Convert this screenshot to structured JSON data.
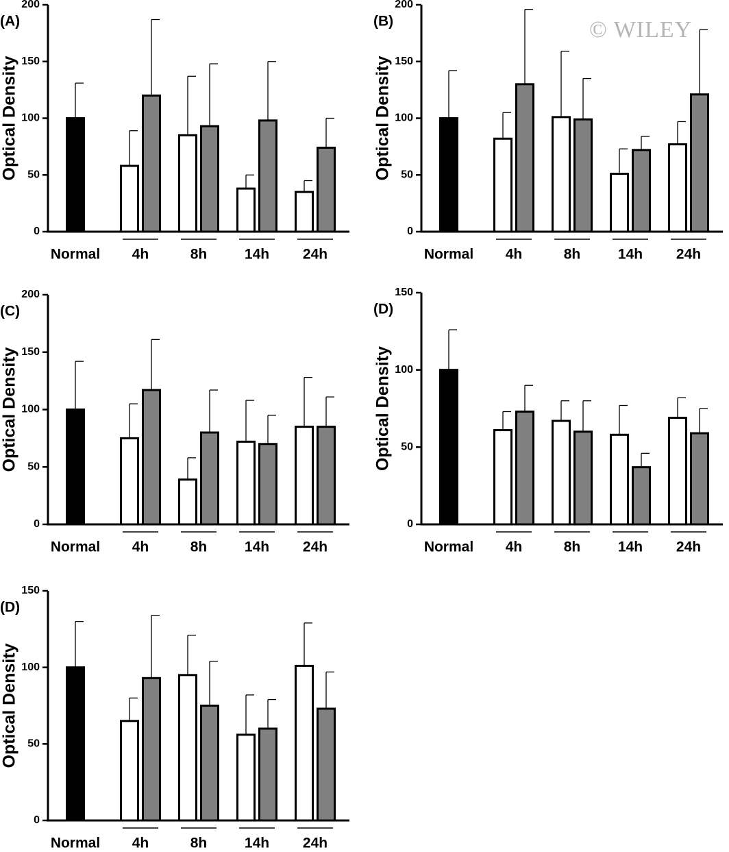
{
  "watermark": "© WILEY",
  "chart_data": [
    {
      "type": "bar",
      "label": "(A)",
      "ylabel": "Optical Density",
      "categories": [
        "Normal",
        "4h",
        "8h",
        "14h",
        "24h"
      ],
      "series": [
        {
          "color": "#000000",
          "values": [
            100,
            null,
            null,
            null,
            null
          ],
          "errors": [
            31,
            null,
            null,
            null,
            null
          ]
        },
        {
          "color": "#ffffff",
          "values": [
            null,
            58,
            85,
            38,
            35
          ],
          "errors": [
            null,
            31,
            52,
            12,
            10
          ]
        },
        {
          "color": "#808080",
          "values": [
            null,
            120,
            93,
            98,
            74
          ],
          "errors": [
            null,
            67,
            55,
            52,
            26
          ]
        }
      ],
      "ylim": [
        0,
        200
      ],
      "yticks": [
        0,
        50,
        100,
        150,
        200
      ]
    },
    {
      "type": "bar",
      "label": "(B)",
      "ylabel": "Optical Density",
      "categories": [
        "Normal",
        "4h",
        "8h",
        "14h",
        "24h"
      ],
      "series": [
        {
          "color": "#000000",
          "values": [
            100,
            null,
            null,
            null,
            null
          ],
          "errors": [
            42,
            null,
            null,
            null,
            null
          ]
        },
        {
          "color": "#ffffff",
          "values": [
            null,
            82,
            101,
            51,
            77
          ],
          "errors": [
            null,
            23,
            58,
            22,
            20
          ]
        },
        {
          "color": "#808080",
          "values": [
            null,
            130,
            99,
            72,
            121
          ],
          "errors": [
            null,
            66,
            36,
            12,
            57
          ]
        }
      ],
      "ylim": [
        0,
        200
      ],
      "yticks": [
        0,
        50,
        100,
        150,
        200
      ]
    },
    {
      "type": "bar",
      "label": "(C)",
      "ylabel": "Optical Density",
      "categories": [
        "Normal",
        "4h",
        "8h",
        "14h",
        "24h"
      ],
      "series": [
        {
          "color": "#000000",
          "values": [
            100,
            null,
            null,
            null,
            null
          ],
          "errors": [
            42,
            null,
            null,
            null,
            null
          ]
        },
        {
          "color": "#ffffff",
          "values": [
            null,
            75,
            39,
            72,
            85
          ],
          "errors": [
            null,
            30,
            19,
            36,
            43
          ]
        },
        {
          "color": "#808080",
          "values": [
            null,
            117,
            80,
            70,
            85
          ],
          "errors": [
            null,
            44,
            37,
            25,
            26
          ]
        }
      ],
      "ylim": [
        0,
        200
      ],
      "yticks": [
        0,
        50,
        100,
        150,
        200
      ]
    },
    {
      "type": "bar",
      "label": "(D)",
      "ylabel": "Optical Density",
      "categories": [
        "Normal",
        "4h",
        "8h",
        "14h",
        "24h"
      ],
      "series": [
        {
          "color": "#000000",
          "values": [
            100,
            null,
            null,
            null,
            null
          ],
          "errors": [
            26,
            null,
            null,
            null,
            null
          ]
        },
        {
          "color": "#ffffff",
          "values": [
            null,
            61,
            67,
            58,
            69
          ],
          "errors": [
            null,
            12,
            13,
            19,
            13
          ]
        },
        {
          "color": "#808080",
          "values": [
            null,
            73,
            60,
            37,
            59
          ],
          "errors": [
            null,
            17,
            20,
            9,
            16
          ]
        }
      ],
      "ylim": [
        0,
        150
      ],
      "yticks": [
        0,
        50,
        100,
        150
      ]
    },
    {
      "type": "bar",
      "label": "(D)",
      "ylabel": "Optical Density",
      "categories": [
        "Normal",
        "4h",
        "8h",
        "14h",
        "24h"
      ],
      "series": [
        {
          "color": "#000000",
          "values": [
            100,
            null,
            null,
            null,
            null
          ],
          "errors": [
            30,
            null,
            null,
            null,
            null
          ]
        },
        {
          "color": "#ffffff",
          "values": [
            null,
            65,
            95,
            56,
            101
          ],
          "errors": [
            null,
            15,
            26,
            26,
            28
          ]
        },
        {
          "color": "#808080",
          "values": [
            null,
            93,
            75,
            60,
            73
          ],
          "errors": [
            null,
            41,
            29,
            19,
            24
          ]
        }
      ],
      "ylim": [
        0,
        150
      ],
      "yticks": [
        0,
        50,
        100,
        150
      ]
    }
  ]
}
